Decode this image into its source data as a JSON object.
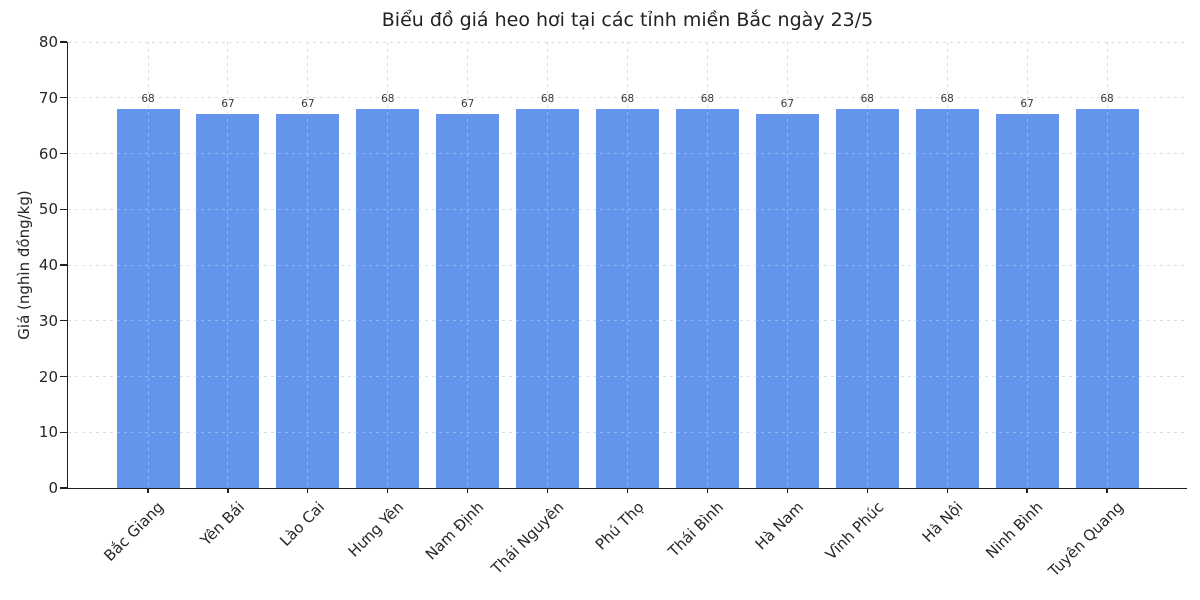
{
  "chart_data": {
    "type": "bar",
    "title": "Biểu đồ giá heo hơi tại các tỉnh miền Bắc ngày 23/5",
    "xlabel": "",
    "ylabel": "Giá (nghìn đồng/kg)",
    "categories": [
      "Bắc Giang",
      "Yên Bái",
      "Lào Cai",
      "Hưng Yên",
      "Nam Định",
      "Thái Nguyên",
      "Phú Thọ",
      "Thái Bình",
      "Hà Nam",
      "Vĩnh Phúc",
      "Hà Nội",
      "Ninh Bình",
      "Tuyên Quang"
    ],
    "values": [
      68,
      67,
      67,
      68,
      67,
      68,
      68,
      68,
      67,
      68,
      68,
      67,
      68
    ],
    "value_labels": [
      "68",
      "67",
      "67",
      "68",
      "67",
      "68",
      "68",
      "68",
      "67",
      "68",
      "68",
      "67",
      "68"
    ],
    "ylim": [
      0,
      80
    ],
    "yticks": [
      0,
      10,
      20,
      30,
      40,
      50,
      60,
      70,
      80
    ],
    "grid": true,
    "grid_style": "dashed",
    "legend": null,
    "bar_color": "#6495ED",
    "grid_color": "#cfcfcf",
    "spine_color": "#1f1f1f",
    "text_color": "#262626",
    "background_color": "#ffffff"
  }
}
